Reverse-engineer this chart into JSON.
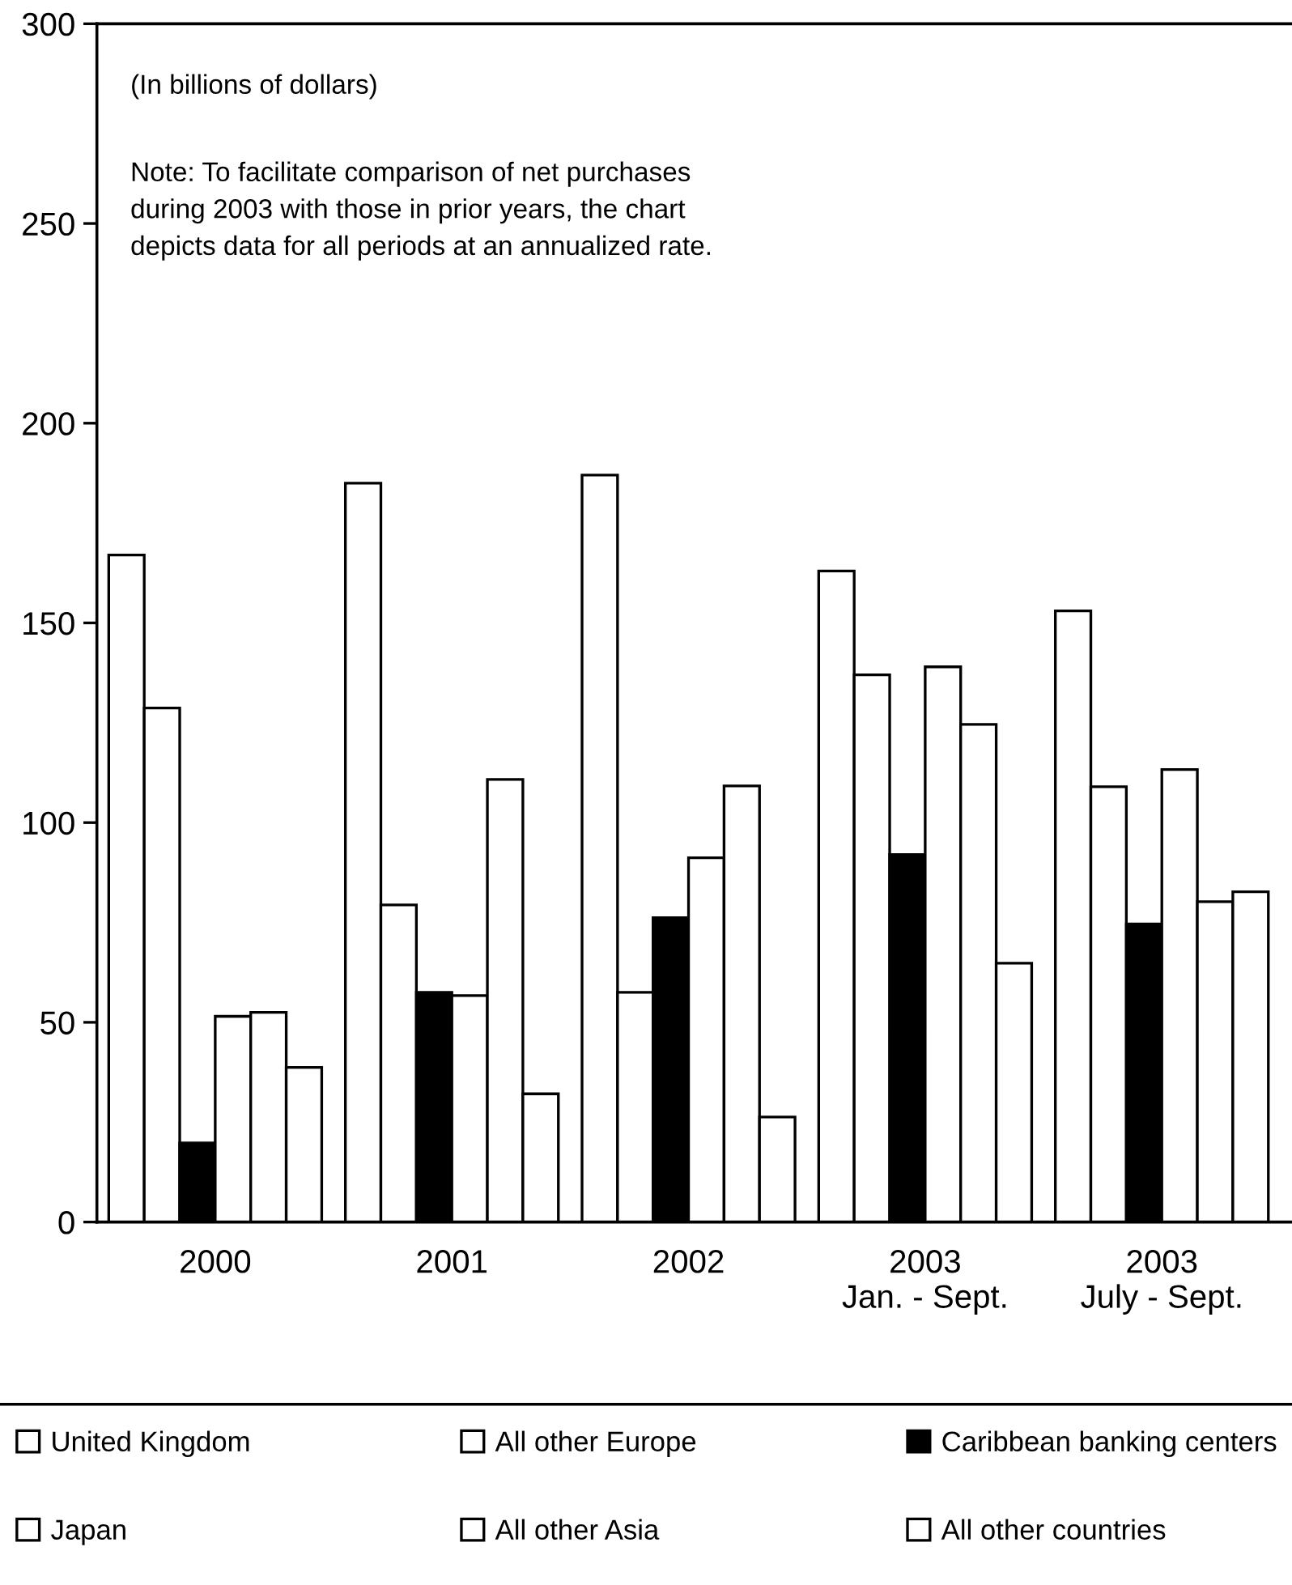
{
  "chart_data": {
    "type": "bar",
    "categories": [
      "2000",
      "2001",
      "2002",
      "2003\nJan. - Sept.",
      "2003\nJuly - Sept."
    ],
    "series": [
      {
        "name": "United Kingdom",
        "color": "#ffffff",
        "values": [
          167,
          185,
          187,
          163,
          153
        ]
      },
      {
        "name": "All other Europe",
        "color": "#ffffff",
        "values": [
          128.7,
          79.4,
          57.5,
          137,
          109
        ]
      },
      {
        "name": "Caribbean banking centers",
        "color": "#000000",
        "values": [
          19.8,
          57.5,
          76.2,
          92,
          74.6
        ]
      },
      {
        "name": "Japan",
        "color": "#ffffff",
        "values": [
          51.5,
          56.7,
          91.2,
          139,
          113.3
        ]
      },
      {
        "name": "All other Asia",
        "color": "#ffffff",
        "values": [
          52.5,
          110.8,
          109.2,
          124.6,
          80.2
        ]
      },
      {
        "name": "All other countries",
        "color": "#ffffff",
        "values": [
          38.7,
          32.1,
          26.3,
          64.8,
          82.7
        ]
      }
    ],
    "ylim": [
      0,
      300
    ],
    "yticks": [
      0,
      50,
      100,
      150,
      200,
      250,
      300
    ],
    "annotations": [
      "(In billions of dollars)",
      "Note: To facilitate comparison of net purchases\nduring 2003 with those in prior years, the chart\ndepicts data for all periods at an annualized rate."
    ],
    "legend": "bottom",
    "grid": false
  }
}
